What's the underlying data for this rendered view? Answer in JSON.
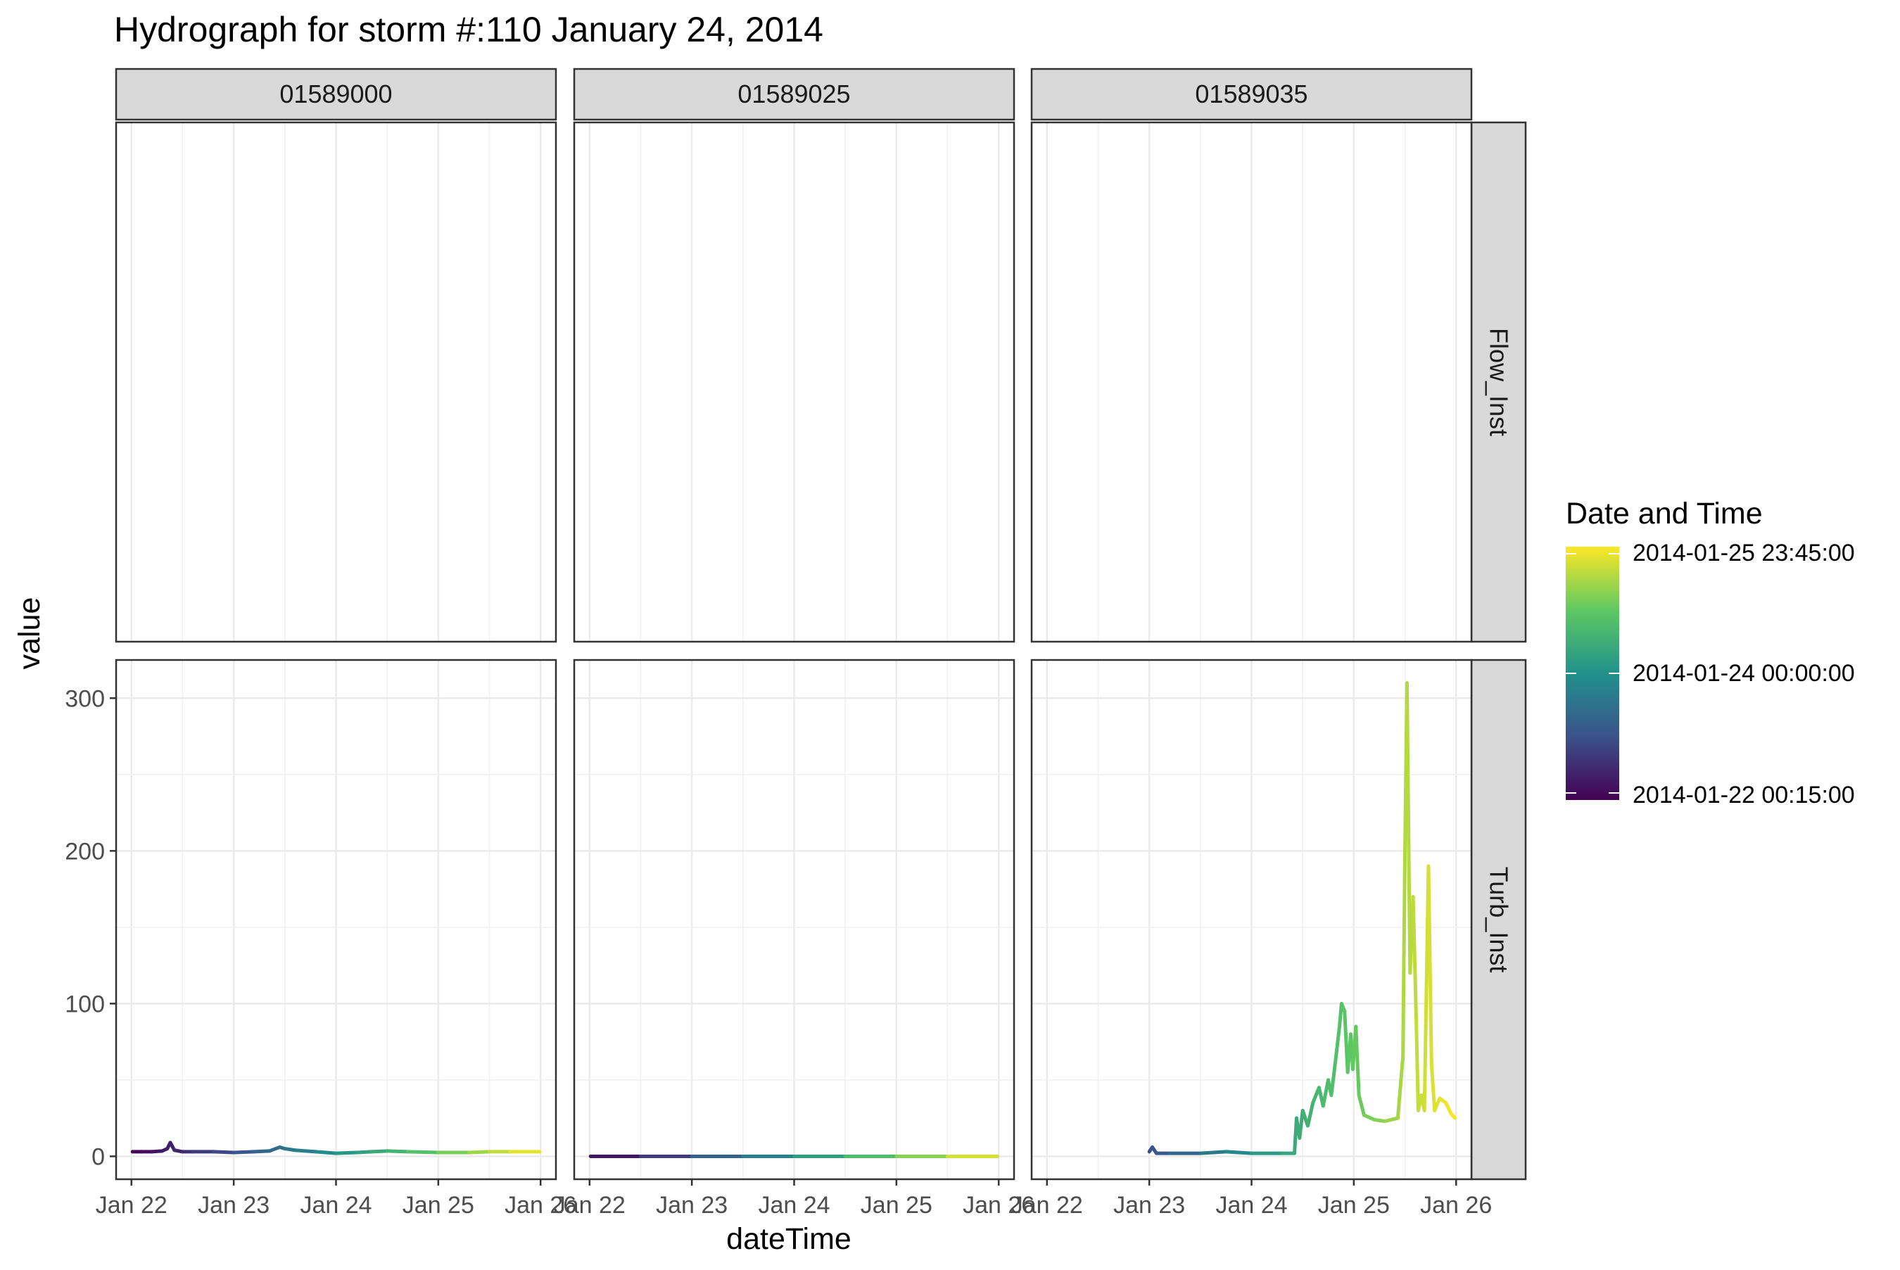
{
  "chart_data": {
    "type": "line",
    "title": "Hydrograph for storm #:110   January 24, 2014",
    "xlabel": "dateTime",
    "ylabel": "value",
    "x_tick_labels": [
      "Jan 22",
      "Jan 23",
      "Jan 24",
      "Jan 25",
      "Jan 26"
    ],
    "x_tick_days": [
      22,
      23,
      24,
      25,
      26
    ],
    "x_range_days": [
      21.85,
      26.15
    ],
    "y_tick_labels": [
      "0",
      "100",
      "200",
      "300"
    ],
    "y_ticks": [
      0,
      100,
      200,
      300
    ],
    "ylim": [
      -15,
      325
    ],
    "columns": [
      "01589000",
      "01589025",
      "01589035"
    ],
    "rows": [
      "Flow_Inst",
      "Turb_Inst"
    ],
    "grid": true,
    "color_scale": {
      "title": "Date and Time",
      "palette": [
        "#440154",
        "#3b528b",
        "#21918c",
        "#5ec962",
        "#fde725"
      ],
      "min_label": "2014-01-22 00:15:00",
      "mid_label": "2014-01-24 00:00:00",
      "max_label": "2014-01-25 23:45:00",
      "min_day": 22.01,
      "mid_day": 24.0,
      "max_day": 25.99,
      "legend_position": "right"
    },
    "series": [
      {
        "panel": "01589000 / Turb_Inst",
        "points": [
          [
            22.01,
            3
          ],
          [
            22.1,
            3
          ],
          [
            22.2,
            3
          ],
          [
            22.3,
            3.5
          ],
          [
            22.35,
            5
          ],
          [
            22.38,
            9
          ],
          [
            22.42,
            4
          ],
          [
            22.5,
            3
          ],
          [
            22.6,
            3
          ],
          [
            22.8,
            3
          ],
          [
            23.0,
            2.5
          ],
          [
            23.2,
            3
          ],
          [
            23.35,
            3.5
          ],
          [
            23.45,
            6
          ],
          [
            23.5,
            5
          ],
          [
            23.6,
            4
          ],
          [
            23.8,
            3
          ],
          [
            24.0,
            2
          ],
          [
            24.2,
            2.5
          ],
          [
            24.35,
            3
          ],
          [
            24.5,
            3.5
          ],
          [
            24.7,
            3
          ],
          [
            25.0,
            2.5
          ],
          [
            25.3,
            2.5
          ],
          [
            25.5,
            3
          ],
          [
            25.7,
            3
          ],
          [
            25.99,
            3
          ]
        ]
      },
      {
        "panel": "01589025 / Turb_Inst",
        "points": [
          [
            22.01,
            0
          ],
          [
            22.5,
            0
          ],
          [
            23.0,
            0
          ],
          [
            23.5,
            0
          ],
          [
            24.0,
            0
          ],
          [
            24.5,
            0
          ],
          [
            25.0,
            0
          ],
          [
            25.5,
            0
          ],
          [
            25.99,
            0
          ]
        ]
      },
      {
        "panel": "01589035 / Turb_Inst",
        "points": [
          [
            23.0,
            3
          ],
          [
            23.03,
            6
          ],
          [
            23.07,
            2
          ],
          [
            23.2,
            2
          ],
          [
            23.5,
            2
          ],
          [
            23.75,
            3
          ],
          [
            24.0,
            2
          ],
          [
            24.3,
            2
          ],
          [
            24.42,
            2
          ],
          [
            24.44,
            25
          ],
          [
            24.47,
            12
          ],
          [
            24.5,
            30
          ],
          [
            24.55,
            20
          ],
          [
            24.6,
            35
          ],
          [
            24.66,
            45
          ],
          [
            24.7,
            33
          ],
          [
            24.75,
            50
          ],
          [
            24.78,
            40
          ],
          [
            24.82,
            62
          ],
          [
            24.86,
            85
          ],
          [
            24.88,
            100
          ],
          [
            24.91,
            95
          ],
          [
            24.94,
            55
          ],
          [
            24.97,
            80
          ],
          [
            24.99,
            57
          ],
          [
            25.02,
            85
          ],
          [
            25.05,
            40
          ],
          [
            25.1,
            27
          ],
          [
            25.2,
            24
          ],
          [
            25.3,
            23
          ],
          [
            25.43,
            25
          ],
          [
            25.48,
            65
          ],
          [
            25.5,
            200
          ],
          [
            25.52,
            310
          ],
          [
            25.55,
            120
          ],
          [
            25.58,
            170
          ],
          [
            25.61,
            90
          ],
          [
            25.63,
            30
          ],
          [
            25.66,
            40
          ],
          [
            25.69,
            30
          ],
          [
            25.73,
            190
          ],
          [
            25.76,
            60
          ],
          [
            25.79,
            30
          ],
          [
            25.84,
            38
          ],
          [
            25.9,
            35
          ],
          [
            25.95,
            28
          ],
          [
            25.99,
            25
          ]
        ]
      }
    ]
  }
}
